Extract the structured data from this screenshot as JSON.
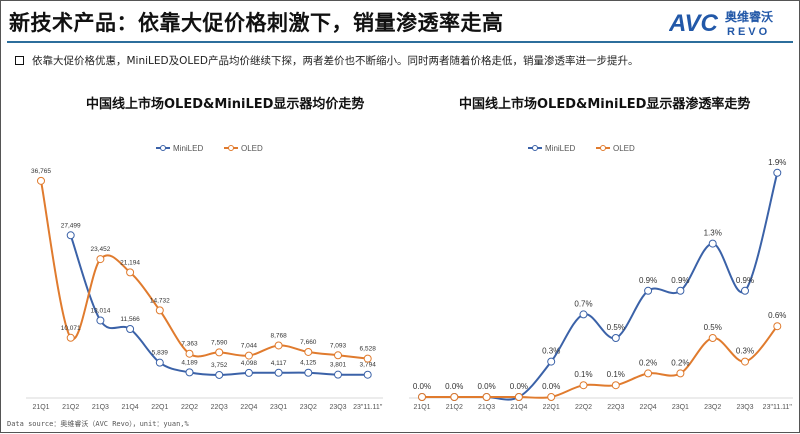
{
  "header": {
    "title": "新技术产品：依靠大促价格刺激下，销量渗透率走高",
    "logo_text": "AVC 奥维睿沃 REVO"
  },
  "bullet": "依靠大促价格优惠，MiniLED及OLED产品均价继续下探，两者差价也不断缩小。同时两者随着价格走低，销量渗透率进一步提升。",
  "source": "Data source：奥维睿沃（AVC Revo），unit：yuan,%",
  "colors": {
    "miniled": "#3b62a8",
    "oled": "#e07b2e",
    "rule": "#2c6e9c"
  },
  "chart_data": [
    {
      "type": "line",
      "title": "中国线上市场OLED&MiniLED显示器均价走势",
      "categories": [
        "21Q1",
        "21Q2",
        "21Q3",
        "21Q4",
        "22Q1",
        "22Q2",
        "22Q3",
        "22Q4",
        "23Q1",
        "23Q2",
        "23Q3",
        "23\"11.11\""
      ],
      "legend": "top",
      "grid": false,
      "series": [
        {
          "name": "MiniLED",
          "color": "#3b62a8",
          "values": [
            null,
            27499,
            13014,
            11566,
            5839,
            4189,
            3752,
            4098,
            4117,
            4125,
            3801,
            3794
          ]
        },
        {
          "name": "OLED",
          "color": "#e07b2e",
          "values": [
            36765,
            10071,
            23452,
            21194,
            14732,
            7363,
            7590,
            7044,
            8768,
            7660,
            7093,
            6528
          ]
        }
      ]
    },
    {
      "type": "line",
      "title": "中国线上市场OLED&MiniLED显示器渗透率走势",
      "categories": [
        "21Q1",
        "21Q2",
        "21Q3",
        "21Q4",
        "22Q1",
        "22Q2",
        "22Q3",
        "22Q4",
        "23Q1",
        "23Q2",
        "23Q3",
        "23\"11.11\""
      ],
      "legend": "top",
      "grid": false,
      "unit": "%",
      "series": [
        {
          "name": "MiniLED",
          "color": "#3b62a8",
          "values": [
            0.0,
            0.0,
            0.0,
            0.0,
            0.3,
            0.7,
            0.5,
            0.9,
            0.9,
            1.3,
            0.9,
            1.9
          ]
        },
        {
          "name": "OLED",
          "color": "#e07b2e",
          "values": [
            0.0,
            0.0,
            0.0,
            0.0,
            0.0,
            0.1,
            0.1,
            0.2,
            0.2,
            0.5,
            0.3,
            0.6
          ]
        }
      ]
    }
  ]
}
